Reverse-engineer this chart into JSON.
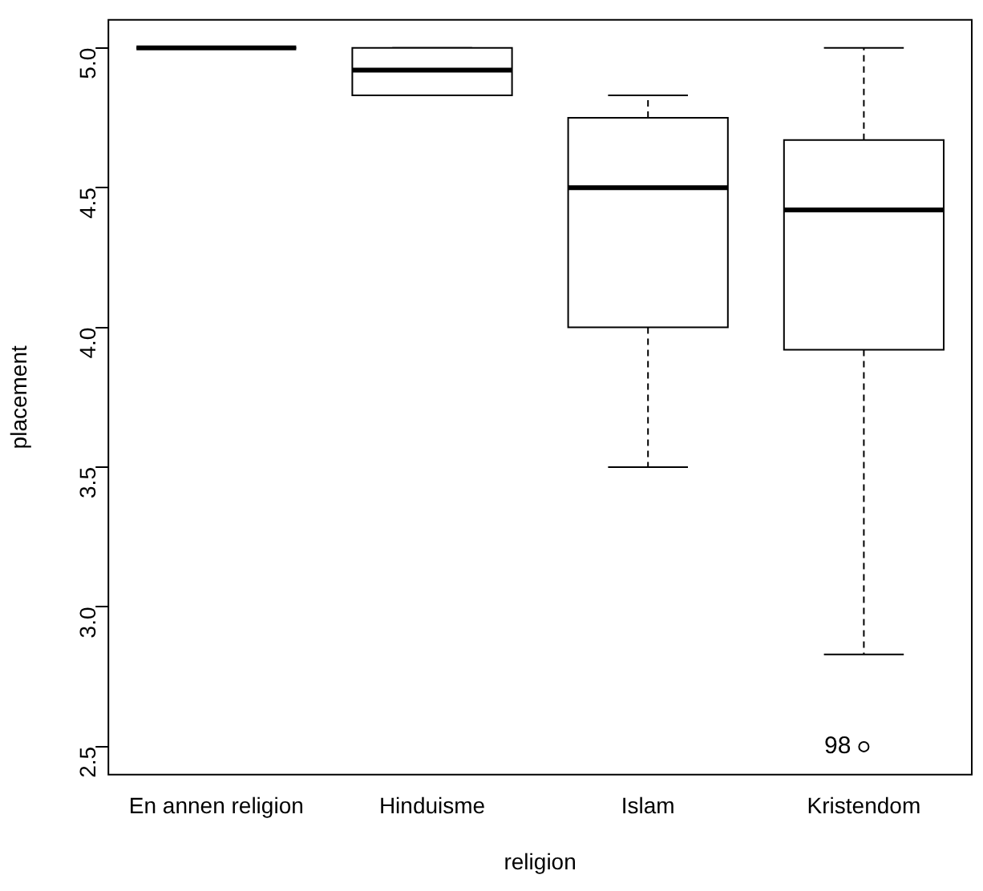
{
  "chart_data": {
    "type": "box",
    "xlabel": "religion",
    "ylabel": "placement",
    "categories": [
      "En annen religion",
      "Hinduisme",
      "Islam",
      "Kristendom"
    ],
    "boxes": [
      {
        "low": 5.0,
        "q1": 5.0,
        "median": 5.0,
        "q3": 5.0,
        "high": 5.0
      },
      {
        "low": 4.83,
        "q1": 4.83,
        "median": 4.92,
        "q3": 5.0,
        "high": 5.0
      },
      {
        "low": 3.5,
        "q1": 4.0,
        "median": 4.5,
        "q3": 4.75,
        "high": 4.83
      },
      {
        "low": 2.83,
        "q1": 3.92,
        "median": 4.42,
        "q3": 4.67,
        "high": 5.0,
        "outliers": [
          2.5
        ]
      }
    ],
    "ylim": [
      2.4,
      5.1
    ],
    "yticks": [
      {
        "value": 2.5,
        "label": "2.5"
      },
      {
        "value": 3,
        "label": "3.0"
      },
      {
        "value": 3.5,
        "label": "3.5"
      },
      {
        "value": 4,
        "label": "4.0"
      },
      {
        "value": 4.5,
        "label": "4.5"
      },
      {
        "value": 5,
        "label": "5.0"
      }
    ],
    "annotations": [
      "98"
    ],
    "grid": false
  }
}
